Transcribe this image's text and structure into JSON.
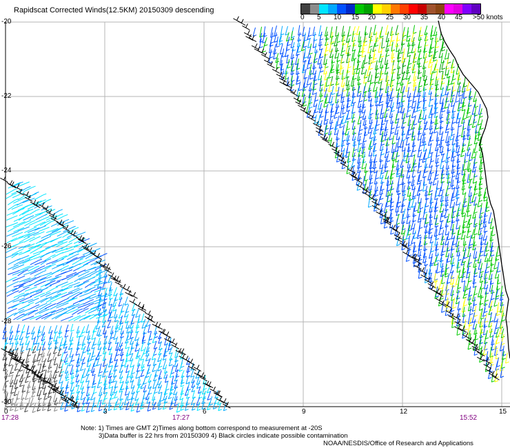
{
  "title": "Rapidscat Corrected Winds(12.5KM) 20150309 descending",
  "legend": {
    "colors": [
      "#404040",
      "#8c8c8c",
      "#00e5ff",
      "#00a8ff",
      "#0050ff",
      "#0028c8",
      "#00c800",
      "#00a000",
      "#ffff00",
      "#ffd000",
      "#ff7800",
      "#ff4000",
      "#ff0000",
      "#c80000",
      "#a0522d",
      "#8b4513",
      "#ff00ff",
      "#e000e0",
      "#8000ff",
      "#6000c0"
    ],
    "labels": [
      "0",
      "5",
      "10",
      "15",
      "20",
      "25",
      "30",
      "35",
      "40",
      "45",
      ">50 knots"
    ]
  },
  "axes": {
    "y_labels": [
      "-20",
      "-22",
      "-24",
      "-26",
      "-28",
      "-30"
    ],
    "x_labels": [
      "0",
      "3",
      "6",
      "9",
      "12",
      "15"
    ],
    "time_labels": [
      "17:28",
      "17:27",
      "15:52"
    ]
  },
  "notes": [
    "Note: 1) Times are GMT 2)Times along bottom correspond to measurement at -20S",
    "3)Data buffer is 22 hrs from 20150309 4) Black circles indicate possible contamination",
    "NOAA/NESDIS/Office of Research and Applications"
  ],
  "colors": {
    "grid": "#b4b4b4",
    "coast": "#000000",
    "time_label": "#800080"
  }
}
